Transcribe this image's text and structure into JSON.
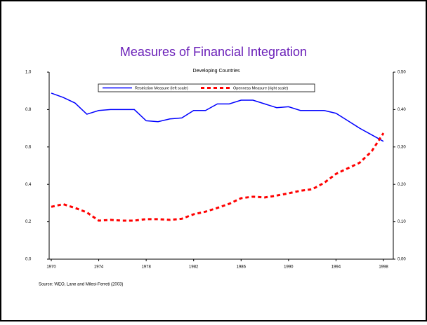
{
  "chart_data": {
    "type": "line",
    "title": "Measures of Financial Integration",
    "subtitle": "Developing Countries",
    "source": "Source: WEO, Lane and Milesi-Ferreti (2003)",
    "x": [
      1970,
      1971,
      1972,
      1973,
      1974,
      1975,
      1976,
      1977,
      1978,
      1979,
      1980,
      1981,
      1982,
      1983,
      1984,
      1985,
      1986,
      1987,
      1988,
      1989,
      1990,
      1991,
      1992,
      1993,
      1994,
      1995,
      1996,
      1997,
      1998
    ],
    "xlim": [
      1970,
      1998
    ],
    "xticks": [
      1970,
      1974,
      1978,
      1982,
      1986,
      1990,
      1994,
      1998
    ],
    "ylim": [
      0,
      1
    ],
    "yticks": [
      {
        "value": 0,
        "label": "0.0"
      },
      0.2,
      0.4,
      0.6,
      0.8,
      {
        "value": 1,
        "label": "1.0"
      }
    ],
    "y2lim": [
      0,
      0.5
    ],
    "y2ticks": [
      {
        "value": 0,
        "label": "0.00"
      },
      {
        "value": 0.1,
        "label": "0.10"
      },
      {
        "value": 0.2,
        "label": "0.20"
      },
      {
        "value": 0.3,
        "label": "0.30"
      },
      {
        "value": 0.4,
        "label": "0.40"
      },
      {
        "value": 0.5,
        "label": "0.50"
      }
    ],
    "series": [
      {
        "name": "Restriction Measure (left scale)",
        "color": "#0000ff",
        "style": "solid",
        "values": [
          0.888,
          0.865,
          0.835,
          0.775,
          0.795,
          0.8,
          0.8,
          0.8,
          0.74,
          0.735,
          0.75,
          0.755,
          0.795,
          0.795,
          0.83,
          0.83,
          0.85,
          0.85,
          0.83,
          0.81,
          0.815,
          0.795,
          0.795,
          0.795,
          0.78,
          0.74,
          0.7,
          0.665,
          0.63
        ]
      },
      {
        "name": "Openness Measure (right scale)",
        "color": "#ff0000",
        "style": "dashed",
        "axis": "y2",
        "values": [
          0.14,
          0.147,
          0.137,
          0.125,
          0.103,
          0.105,
          0.103,
          0.103,
          0.107,
          0.107,
          0.105,
          0.108,
          0.12,
          0.127,
          0.137,
          0.148,
          0.163,
          0.167,
          0.165,
          0.17,
          0.176,
          0.183,
          0.187,
          0.204,
          0.228,
          0.243,
          0.258,
          0.288,
          0.337
        ]
      }
    ]
  }
}
